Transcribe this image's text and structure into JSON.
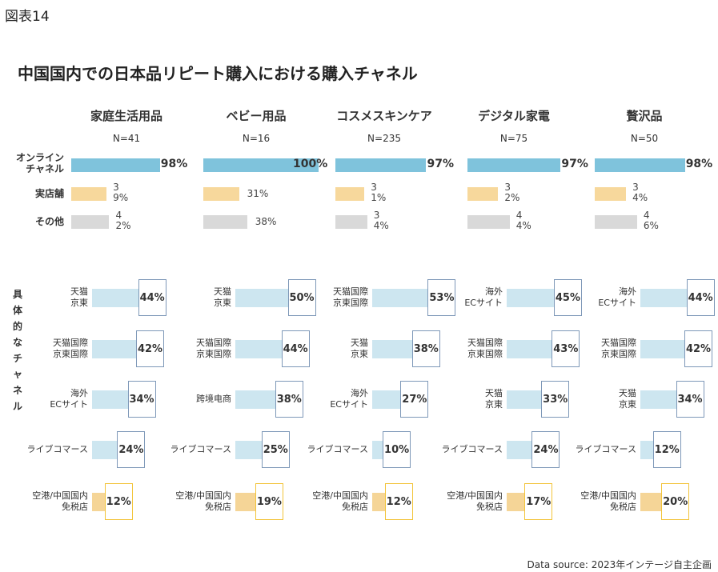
{
  "figure_label": "図表14",
  "chart_data": {
    "type": "bar",
    "title": "中国国内での日本品リピート購入における購入チャネル",
    "source": "Data source: 2023年インテージ自主企画",
    "colors": {
      "online": "#7fc3dc",
      "store": "#f7d89c",
      "other": "#d9d9d9",
      "channel_bar": "#cde6f0",
      "dutyfree_bar": "#f5d597",
      "box_border": "#7e98b8",
      "dutyfree_box_border": "#f2c43a"
    },
    "top_row_labels": [
      "オンライン\nチャネル",
      "実店舗",
      "その他"
    ],
    "specific_label": "具体的なチャネル",
    "categories": [
      {
        "name": "家庭生活用品",
        "n": "N=41",
        "online": 98,
        "store": 39,
        "other": 42,
        "channels": [
          {
            "label": "天猫\n京東",
            "value": 44
          },
          {
            "label": "天猫国際\n京東国際",
            "value": 42
          },
          {
            "label": "海外\nECサイト",
            "value": 34
          },
          {
            "label": "ライブコマース",
            "value": 24
          },
          {
            "label": "空港/中国国内\n免税店",
            "value": 12
          }
        ]
      },
      {
        "name": "ベビー用品",
        "n": "N=16",
        "online": 100,
        "store": 31,
        "other": 38,
        "channels": [
          {
            "label": "天猫\n京東",
            "value": 50
          },
          {
            "label": "天猫国際\n京東国際",
            "value": 44
          },
          {
            "label": "跨境电商",
            "value": 38
          },
          {
            "label": "ライブコマース",
            "value": 25
          },
          {
            "label": "空港/中国国内\n免税店",
            "value": 19
          }
        ]
      },
      {
        "name": "コスメスキンケア",
        "n": "N=235",
        "online": 97,
        "store": 31,
        "other": 34,
        "channels": [
          {
            "label": "天猫国際\n京東国際",
            "value": 53
          },
          {
            "label": "天猫\n京東",
            "value": 38
          },
          {
            "label": "海外\nECサイト",
            "value": 27
          },
          {
            "label": "ライブコマース",
            "value": 10
          },
          {
            "label": "空港/中国国内\n免税店",
            "value": 12
          }
        ]
      },
      {
        "name": "デジタル家電",
        "n": "N=75",
        "online": 97,
        "store": 32,
        "other": 44,
        "channels": [
          {
            "label": "海外\nECサイト",
            "value": 45
          },
          {
            "label": "天猫国際\n京東国際",
            "value": 43
          },
          {
            "label": "天猫\n京東",
            "value": 33
          },
          {
            "label": "ライブコマース",
            "value": 24
          },
          {
            "label": "空港/中国国内\n免税店",
            "value": 17
          }
        ]
      },
      {
        "name": "贅沢品",
        "n": "N=50",
        "online": 98,
        "store": 34,
        "other": 46,
        "channels": [
          {
            "label": "海外\nECサイト",
            "value": 44
          },
          {
            "label": "天猫国際\n京東国際",
            "value": 42
          },
          {
            "label": "天猫\n京東",
            "value": 34
          },
          {
            "label": "ライブコマース",
            "value": 12
          },
          {
            "label": "空港/中国国内\n免税店",
            "value": 20
          }
        ]
      }
    ]
  }
}
